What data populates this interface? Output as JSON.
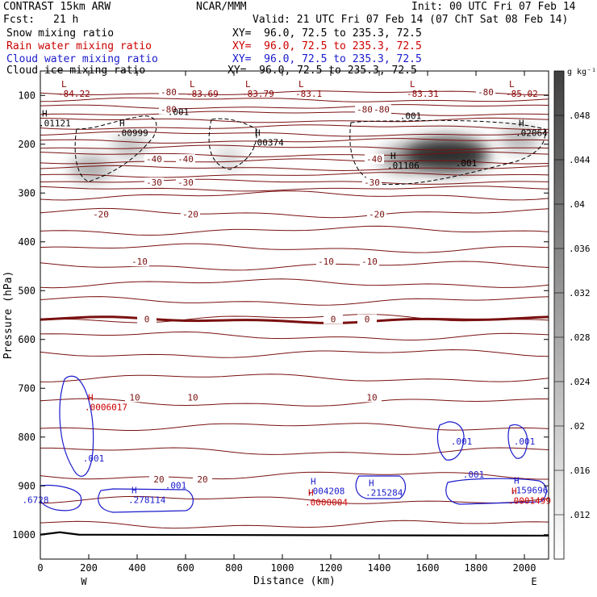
{
  "header": {
    "title": "CONTRAST 15km ARW",
    "source": "NCAR/MMM",
    "init": "Init: 00 UTC Fri 07 Feb 14",
    "fcst_label": "Fcst:",
    "fcst_value": "21 h",
    "valid": "Valid: 21 UTC Fri 07 Feb 14 (07 ChT Sat 08 Feb 14)"
  },
  "legend": [
    {
      "name": "Snow mixing ratio",
      "xy": "XY=  96.0, 72.5 to 235.3, 72.5",
      "color": "#000000"
    },
    {
      "name": "Rain water mixing ratio",
      "xy": "XY=  96.0, 72.5 to 235.3, 72.5",
      "color": "#cc0000"
    },
    {
      "name": "Cloud water mixing ratio",
      "xy": "XY=  96.0, 72.5 to 235.3, 72.5",
      "color": "#1a1acc"
    },
    {
      "name": "Cloud ice mixing ratio",
      "xy": "XY=  96.0, 72.5 to 235.3, 72.5",
      "color": "#000000"
    }
  ],
  "colorbar": {
    "unit": "g kg⁻¹",
    "ticks": [
      ".012",
      ".016",
      ".02",
      ".024",
      ".028",
      ".032",
      ".036",
      ".04",
      ".044",
      ".048"
    ]
  },
  "chart_data": {
    "type": "heatmap",
    "title": "CONTRAST 15km ARW",
    "xlabel": "Distance (km)",
    "ylabel": "Pressure (hPa)",
    "xlim": [
      0,
      2100
    ],
    "ylim": [
      1050,
      50
    ],
    "x_ticks": [
      "0",
      "200",
      "400",
      "600",
      "800",
      "1000",
      "1200",
      "1400",
      "1600",
      "1800",
      "2000"
    ],
    "y_ticks": [
      "100",
      "200",
      "300",
      "400",
      "500",
      "600",
      "700",
      "800",
      "900",
      "1000"
    ],
    "x_end_labels": {
      "left": "W",
      "right": "E"
    },
    "temperature_contours": [
      {
        "value": -80,
        "pressure": 95,
        "labels": [
          {
            "text": "-80",
            "x": 530
          },
          {
            "text": "-80",
            "x": 1840
          }
        ]
      },
      {
        "value": -80,
        "pressure": 130,
        "labels": [
          {
            "text": "-80",
            "x": 530
          },
          {
            "text": "-80",
            "x": 1340
          },
          {
            "text": "-80",
            "x": 1410
          }
        ]
      },
      {
        "value": -40,
        "pressure": 232,
        "labels": [
          {
            "text": "-40",
            "x": 470
          },
          {
            "text": "-40",
            "x": 600
          },
          {
            "text": "-40",
            "x": 1380
          }
        ]
      },
      {
        "value": -30,
        "pressure": 280,
        "labels": [
          {
            "text": "-30",
            "x": 470
          },
          {
            "text": "-30",
            "x": 600
          },
          {
            "text": "-30",
            "x": 1370
          }
        ]
      },
      {
        "value": -20,
        "pressure": 345,
        "labels": [
          {
            "text": "-20",
            "x": 250
          },
          {
            "text": "-20",
            "x": 620
          },
          {
            "text": "-20",
            "x": 1390
          }
        ]
      },
      {
        "value": -10,
        "pressure": 442,
        "labels": [
          {
            "text": "-10",
            "x": 410
          },
          {
            "text": "-10",
            "x": 1180
          },
          {
            "text": "-10",
            "x": 1360
          }
        ]
      },
      {
        "value": 0,
        "pressure": 560,
        "labels": [
          {
            "text": "0",
            "x": 440
          },
          {
            "text": "0",
            "x": 1210
          },
          {
            "text": "0",
            "x": 1350
          }
        ]
      },
      {
        "value": 10,
        "pressure": 720,
        "labels": [
          {
            "text": "10",
            "x": 390
          },
          {
            "text": "10",
            "x": 630
          },
          {
            "text": "10",
            "x": 1370
          }
        ]
      },
      {
        "value": 20,
        "pressure": 888,
        "labels": [
          {
            "text": "20",
            "x": 490
          },
          {
            "text": "20",
            "x": 670
          }
        ]
      }
    ],
    "extrema_labels": [
      {
        "kind": "L",
        "value": "-84.22",
        "x": 120,
        "p": 98,
        "color": "#8b0000"
      },
      {
        "kind": "L",
        "value": "-83.69",
        "x": 650,
        "p": 98,
        "color": "#8b0000"
      },
      {
        "kind": "L",
        "value": "-83.79",
        "x": 880,
        "p": 98,
        "color": "#8b0000"
      },
      {
        "kind": "L",
        "value": "-83.1",
        "x": 1100,
        "p": 98,
        "color": "#8b0000"
      },
      {
        "kind": "L",
        "value": "-83.31",
        "x": 1560,
        "p": 98,
        "color": "#8b0000"
      },
      {
        "kind": "L",
        "value": "-85.02",
        "x": 1970,
        "p": 98,
        "color": "#8b0000"
      },
      {
        "kind": "H",
        "value": ".01121",
        "x": 40,
        "p": 158,
        "color": "#000000"
      },
      {
        "kind": "H",
        "value": ".00999",
        "x": 360,
        "p": 178,
        "color": "#000000"
      },
      {
        "kind": "H",
        "value": ".00374",
        "x": 920,
        "p": 198,
        "color": "#000000"
      },
      {
        "kind": "H",
        "value": ".01106",
        "x": 1480,
        "p": 245,
        "color": "#000000"
      },
      {
        "kind": "H",
        "value": ".02064",
        "x": 2010,
        "p": 178,
        "color": "#000000"
      },
      {
        "kind": "H",
        "value": ".0006017",
        "x": 230,
        "p": 740,
        "color": "#cc0000"
      },
      {
        "kind": "H",
        "value": ".278114",
        "x": 410,
        "p": 930,
        "color": "#1a1acc"
      },
      {
        "kind": "H",
        "value": ".004208",
        "x": 1150,
        "p": 912,
        "color": "#1a1acc"
      },
      {
        "kind": "H",
        "value": ".0000004",
        "x": 1140,
        "p": 935,
        "color": "#cc0000"
      },
      {
        "kind": "H",
        "value": ".215284",
        "x": 1390,
        "p": 915,
        "color": "#1a1acc"
      },
      {
        "kind": "H",
        "value": ".159696",
        "x": 1990,
        "p": 910,
        "color": "#1a1acc"
      },
      {
        "kind": "H",
        "value": ".0001499",
        "x": 1980,
        "p": 932,
        "color": "#cc0000"
      }
    ],
    "contour_labels": [
      {
        "text": ".001",
        "x": 570,
        "p": 140,
        "color": "#000000"
      },
      {
        "text": ".001",
        "x": 1530,
        "p": 148,
        "color": "#000000"
      },
      {
        "text": ".001",
        "x": 1760,
        "p": 245,
        "color": "#000000"
      },
      {
        "text": ".001",
        "x": 220,
        "p": 850,
        "color": "#1a1acc"
      },
      {
        "text": ".001",
        "x": 1740,
        "p": 815,
        "color": "#1a1acc"
      },
      {
        "text": ".001",
        "x": 2000,
        "p": 815,
        "color": "#1a1acc"
      },
      {
        "text": ".001",
        "x": 560,
        "p": 905,
        "color": "#1a1acc"
      },
      {
        "text": ".001",
        "x": 1790,
        "p": 883,
        "color": "#1a1acc"
      },
      {
        "text": ".6728",
        "x": -20,
        "p": 935,
        "color": "#1a1acc"
      }
    ],
    "snow_blobs": [
      {
        "x": 210,
        "p": 250,
        "level": 0.022
      },
      {
        "x": 370,
        "p": 205,
        "level": 0.018
      },
      {
        "x": 780,
        "p": 230,
        "level": 0.014
      },
      {
        "x": 1500,
        "p": 230,
        "level": 0.026
      },
      {
        "x": 1680,
        "p": 222,
        "level": 0.048
      },
      {
        "x": 1980,
        "p": 190,
        "level": 0.02
      }
    ],
    "colorbar_range": [
      0.01,
      0.05
    ]
  }
}
